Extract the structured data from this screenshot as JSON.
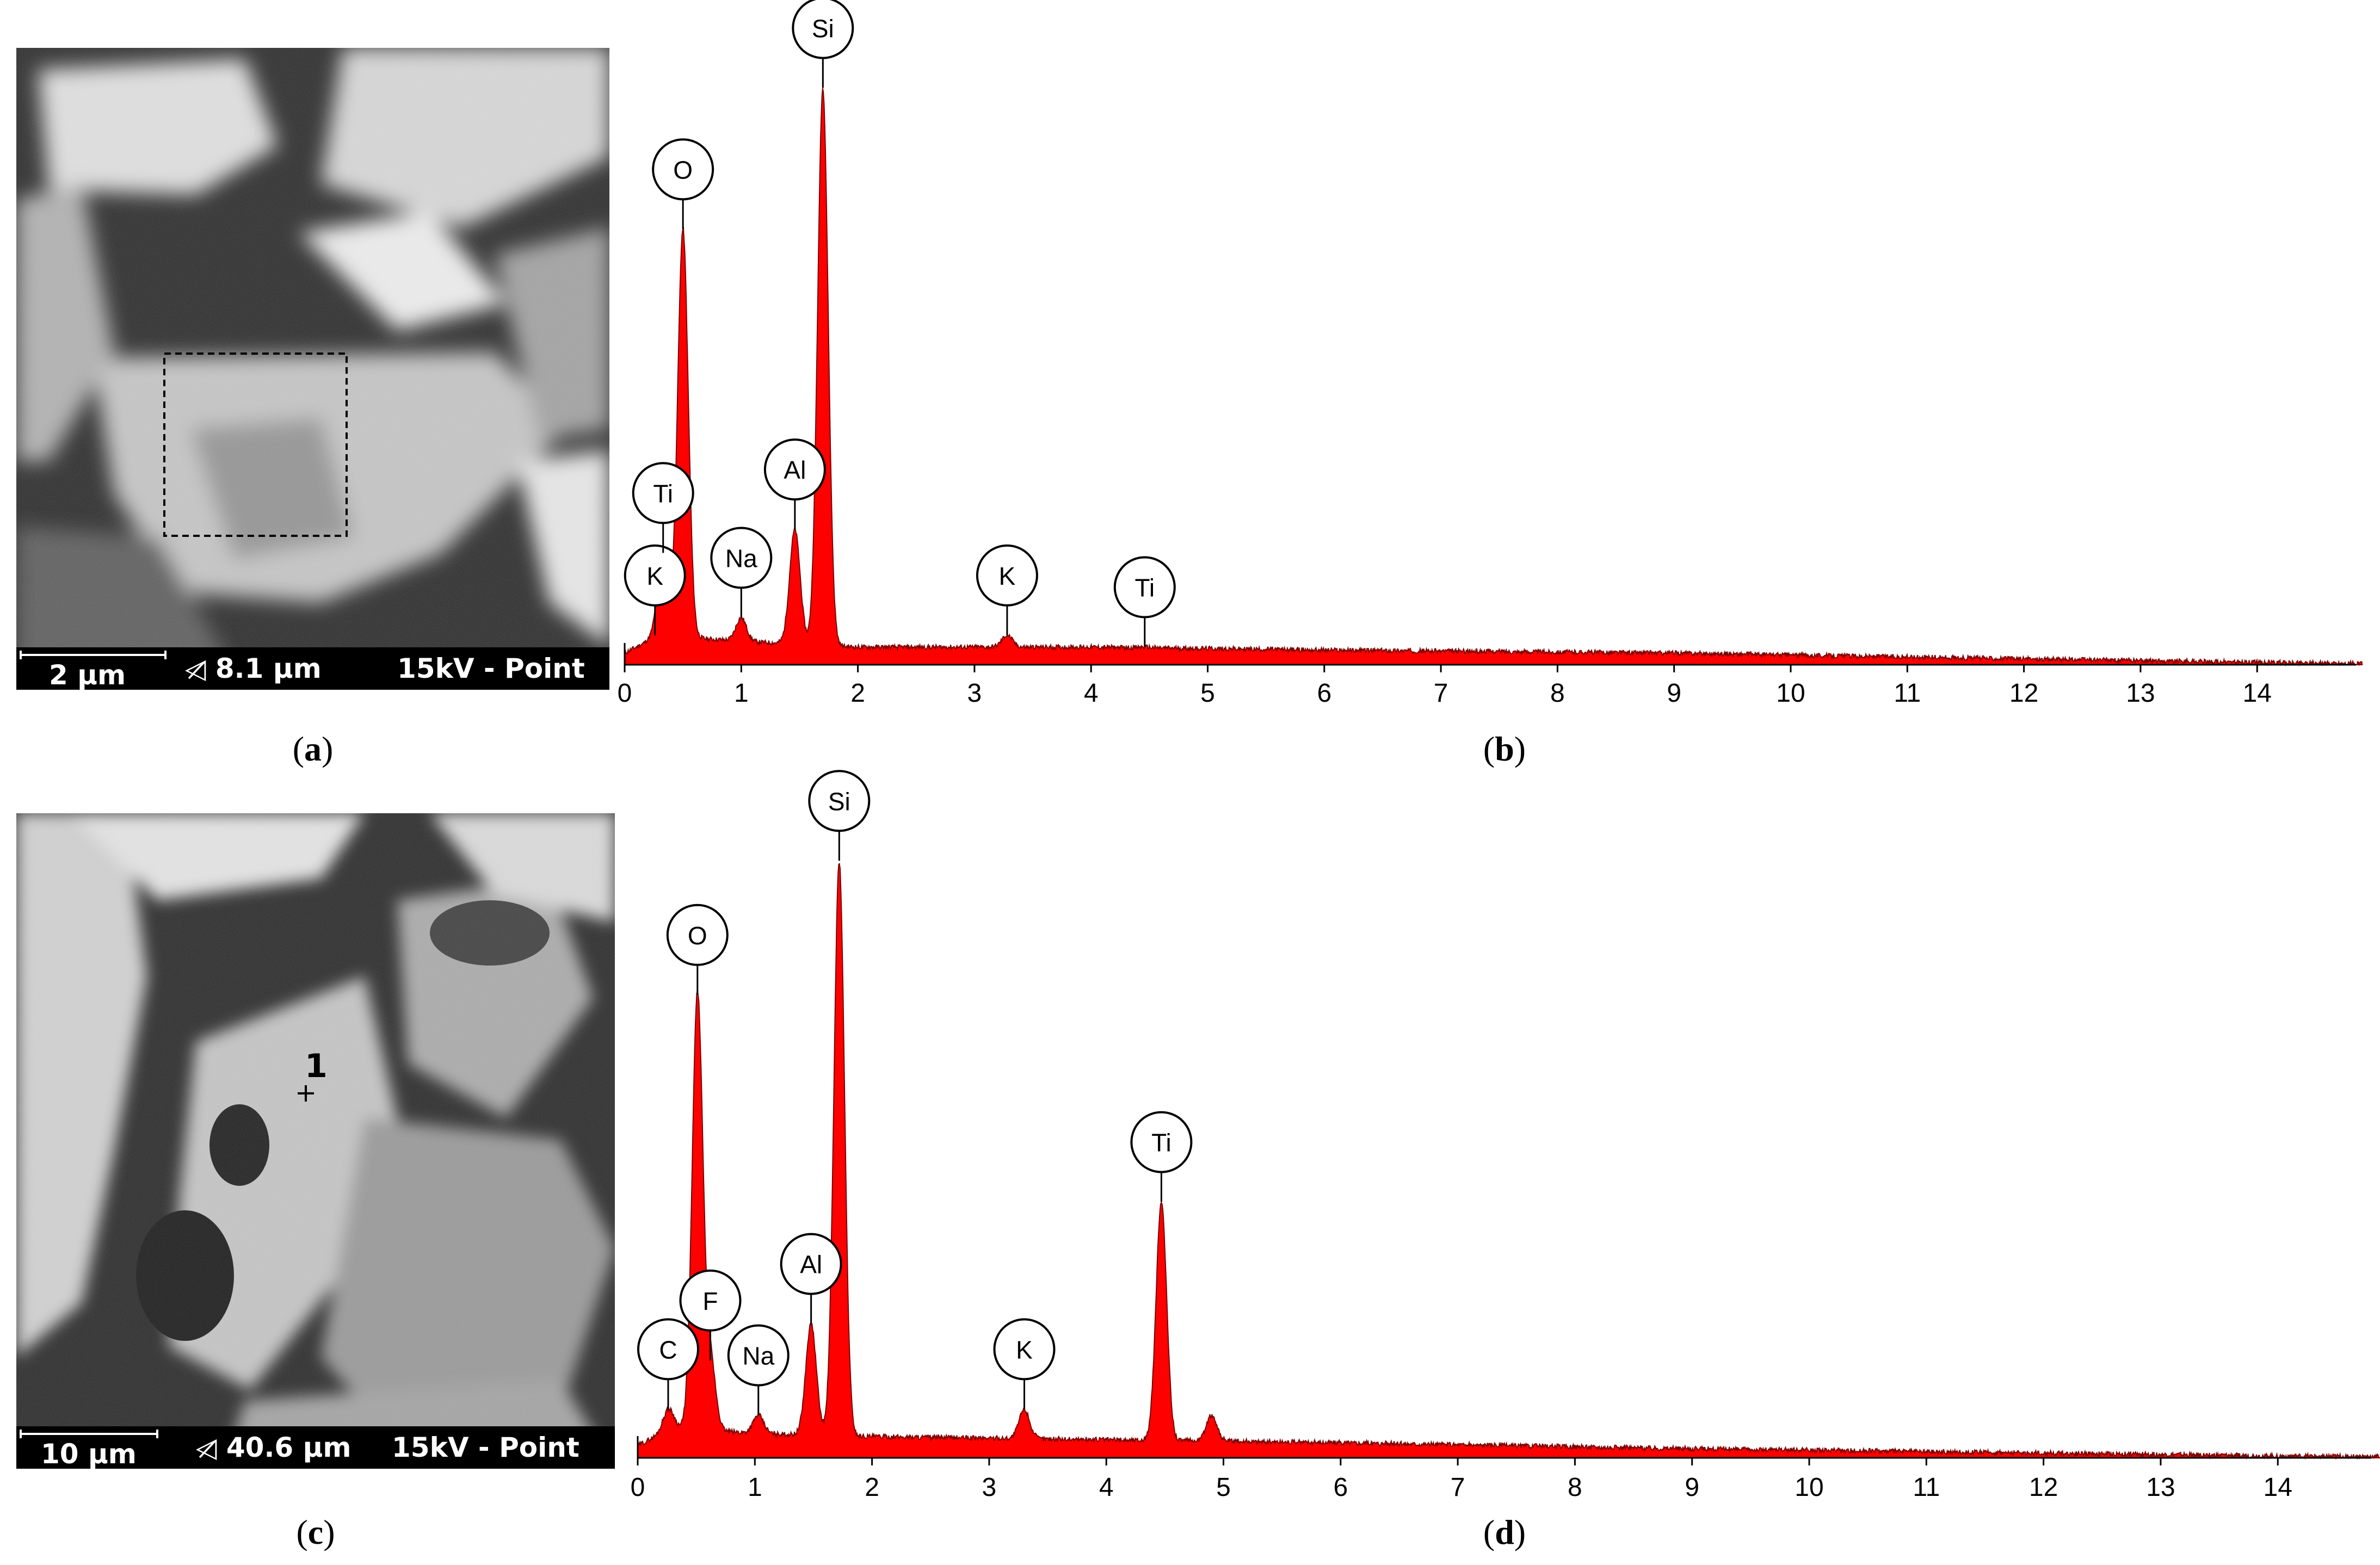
{
  "colors": {
    "spectrum_fill": "#ff0000",
    "spectrum_edge": "#7a0000",
    "axis": "#000000"
  },
  "panels": {
    "a": {
      "label_open": "(",
      "label_letter": "a",
      "label_close": ")",
      "scale_text": "2 µm",
      "fov_text": "◁̷ 8.1 µm",
      "mode_text": "15kV - Point",
      "roi": "dashed rectangle"
    },
    "c": {
      "label_open": "(",
      "label_letter": "c",
      "label_close": ")",
      "scale_text": "10 µm",
      "fov_text": "◁̷ 40.6 µm",
      "mode_text": "15kV - Point",
      "point_label": "1"
    },
    "b": {
      "label_open": "(",
      "label_letter": "b",
      "label_close": ")"
    },
    "d": {
      "label_open": "(",
      "label_letter": "d",
      "label_close": ")"
    }
  },
  "chart_data": [
    {
      "panel": "b",
      "type": "area",
      "title": "",
      "xlabel": "",
      "ylabel": "",
      "xlim": [
        0,
        14.9
      ],
      "xticks": [
        0,
        1,
        2,
        3,
        4,
        5,
        6,
        7,
        8,
        9,
        10,
        11,
        12,
        13,
        14
      ],
      "x_unit_implied": "keV",
      "y_relative_max": 1.0,
      "peaks": [
        {
          "label": "K",
          "x": 0.26,
          "y": 0.05
        },
        {
          "label": "Ti",
          "x": 0.33,
          "y": 0.19
        },
        {
          "label": "O",
          "x": 0.5,
          "y": 0.74
        },
        {
          "label": "Na",
          "x": 1.0,
          "y": 0.08
        },
        {
          "label": "Al",
          "x": 1.46,
          "y": 0.23
        },
        {
          "label": "Si",
          "x": 1.7,
          "y": 0.98
        },
        {
          "label": "K",
          "x": 3.28,
          "y": 0.05
        },
        {
          "label": "Ti",
          "x": 4.46,
          "y": 0.03
        }
      ],
      "background": [
        [
          0,
          0.02
        ],
        [
          0.3,
          0.05
        ],
        [
          1.0,
          0.04
        ],
        [
          2.0,
          0.03
        ],
        [
          4.0,
          0.03
        ],
        [
          6.0,
          0.025
        ],
        [
          9.0,
          0.02
        ],
        [
          12.0,
          0.01
        ],
        [
          14.0,
          0.004
        ],
        [
          14.9,
          0.002
        ]
      ]
    },
    {
      "panel": "d",
      "type": "area",
      "title": "",
      "xlabel": "",
      "ylabel": "",
      "xlim": [
        0,
        14.9
      ],
      "xticks": [
        0,
        1,
        2,
        3,
        4,
        5,
        6,
        7,
        8,
        9,
        10,
        11,
        12,
        13,
        14
      ],
      "x_unit_implied": "keV",
      "y_relative_max": 1.0,
      "peaks": [
        {
          "label": "C",
          "x": 0.26,
          "y": 0.08
        },
        {
          "label": "O",
          "x": 0.51,
          "y": 0.76
        },
        {
          "label": "F",
          "x": 0.62,
          "y": 0.16
        },
        {
          "label": "Na",
          "x": 1.03,
          "y": 0.07
        },
        {
          "label": "Al",
          "x": 1.48,
          "y": 0.22
        },
        {
          "label": "Si",
          "x": 1.72,
          "y": 0.98
        },
        {
          "label": "K",
          "x": 3.3,
          "y": 0.08
        },
        {
          "label": "Ti",
          "x": 4.47,
          "y": 0.42
        },
        {
          "label": "",
          "x": 4.9,
          "y": 0.07
        }
      ],
      "background": [
        [
          0,
          0.02
        ],
        [
          0.3,
          0.05
        ],
        [
          1.0,
          0.04
        ],
        [
          2.0,
          0.035
        ],
        [
          4.0,
          0.03
        ],
        [
          6.0,
          0.025
        ],
        [
          9.0,
          0.015
        ],
        [
          12.0,
          0.008
        ],
        [
          14.0,
          0.003
        ],
        [
          14.9,
          0.002
        ]
      ]
    }
  ]
}
